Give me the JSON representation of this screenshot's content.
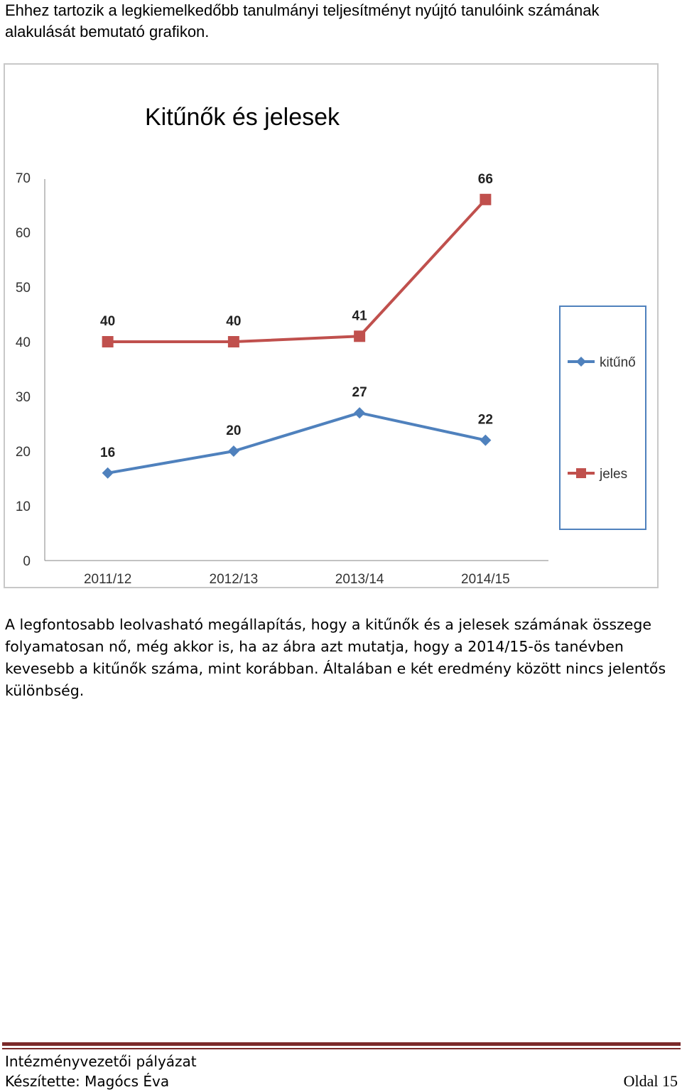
{
  "intro": {
    "text": "Ehhez tartozik a legkiemelkedőbb tanulmányi teljesítményt nyújtó tanulóink számának alakulását bemutató grafikon."
  },
  "chart_data": {
    "type": "line",
    "title": "Kitűnők és jelesek",
    "xlabel": "",
    "ylabel": "",
    "categories": [
      "2011/12",
      "2012/13",
      "2013/14",
      "2014/15"
    ],
    "ylim": [
      0,
      70
    ],
    "yticks": [
      0,
      10,
      20,
      30,
      40,
      50,
      60,
      70
    ],
    "grid": false,
    "legend_position": "right",
    "series": [
      {
        "name": "kitűnő",
        "values": [
          16,
          20,
          27,
          22
        ],
        "color": "#4f81bd",
        "marker": "diamond"
      },
      {
        "name": "jeles",
        "values": [
          40,
          40,
          41,
          66
        ],
        "color": "#c0504d",
        "marker": "square"
      }
    ]
  },
  "body": {
    "paragraph": "A legfontosabb leolvasható megállapítás, hogy a kitűnők és a jelesek számának összege folyamatosan nő, még akkor is, ha az ábra azt mutatja, hogy a 2014/15-ös tanévben kevesebb a kitűnők száma, mint korábban. Általában e két eredmény között nincs jelentős különbség."
  },
  "footer": {
    "line1": "Intézményvezetői pályázat",
    "line2": "Készítette: Magócs Éva",
    "page": "Oldal 15"
  }
}
